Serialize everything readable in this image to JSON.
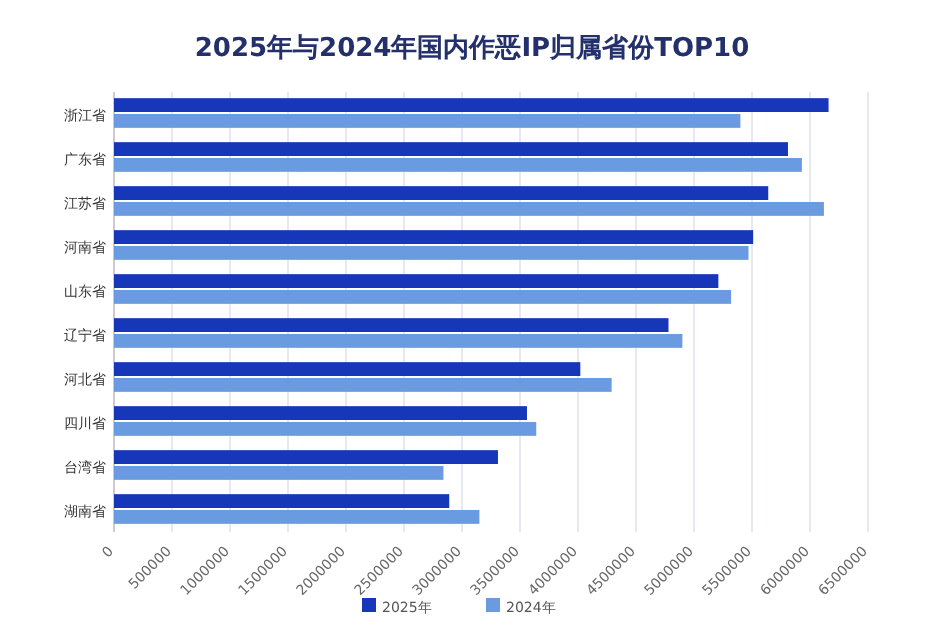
{
  "chart_data": {
    "type": "bar",
    "orientation": "horizontal",
    "title": "2025年与2024年国内作恶IP归属省份TOP10",
    "categories": [
      "浙江省",
      "广东省",
      "江苏省",
      "河南省",
      "山东省",
      "辽宁省",
      "河北省",
      "四川省",
      "台湾省",
      "湖南省"
    ],
    "series": [
      {
        "name": "2025年",
        "color": "#1537b8",
        "values": [
          6160000,
          5810000,
          5640000,
          5510000,
          5210000,
          4780000,
          4020000,
          3560000,
          3310000,
          2890000
        ]
      },
      {
        "name": "2024年",
        "color": "#6a9be0",
        "values": [
          5400000,
          5930000,
          6120000,
          5470000,
          5320000,
          4900000,
          4290000,
          3640000,
          2840000,
          3150000
        ]
      }
    ],
    "xlim": [
      0,
      6500000
    ],
    "xticks": [
      0,
      500000,
      1000000,
      1500000,
      2000000,
      2500000,
      3000000,
      3500000,
      4000000,
      4500000,
      5000000,
      5500000,
      6000000,
      6500000
    ],
    "grid": "x",
    "legend": "bottom"
  }
}
